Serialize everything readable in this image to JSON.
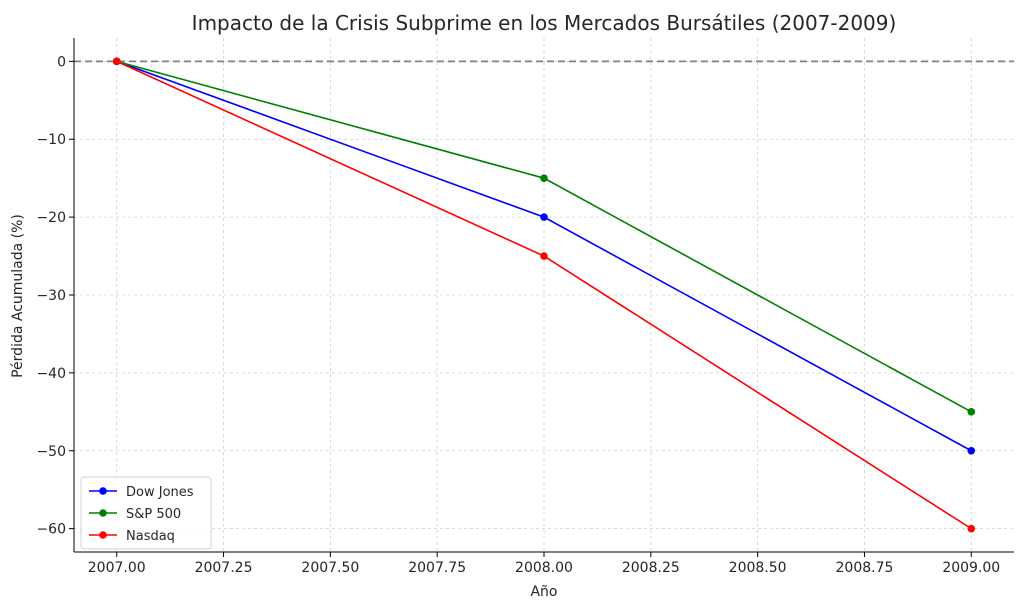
{
  "chart_data": {
    "type": "line",
    "title": "Impacto de la Crisis Subprime en los Mercados Bursátiles (2007-2009)",
    "xlabel": "Año",
    "ylabel": "Pérdida Acumulada (%)",
    "x": [
      2007,
      2008,
      2009
    ],
    "xlim": [
      2006.9,
      2009.1
    ],
    "ylim": [
      -63,
      3
    ],
    "xticks": [
      2007.0,
      2007.25,
      2007.5,
      2007.75,
      2008.0,
      2008.25,
      2008.5,
      2008.75,
      2009.0
    ],
    "xtick_labels": [
      "2007.00",
      "2007.25",
      "2007.50",
      "2007.75",
      "2008.00",
      "2008.25",
      "2008.50",
      "2008.75",
      "2009.00"
    ],
    "yticks": [
      0,
      -10,
      -20,
      -30,
      -40,
      -50,
      -60
    ],
    "ytick_labels": [
      "0",
      "−10",
      "−20",
      "−30",
      "−40",
      "−50",
      "−60"
    ],
    "grid": true,
    "legend_position": "bottom-left",
    "reference_line": {
      "y": 0,
      "style": "dashed",
      "color": "#808080"
    },
    "series": [
      {
        "name": "Dow Jones",
        "values": [
          0,
          -20,
          -50
        ],
        "color": "#0000ff"
      },
      {
        "name": "S&P 500",
        "values": [
          0,
          -15,
          -45
        ],
        "color": "#008000"
      },
      {
        "name": "Nasdaq",
        "values": [
          0,
          -25,
          -60
        ],
        "color": "#ff0000"
      }
    ]
  }
}
